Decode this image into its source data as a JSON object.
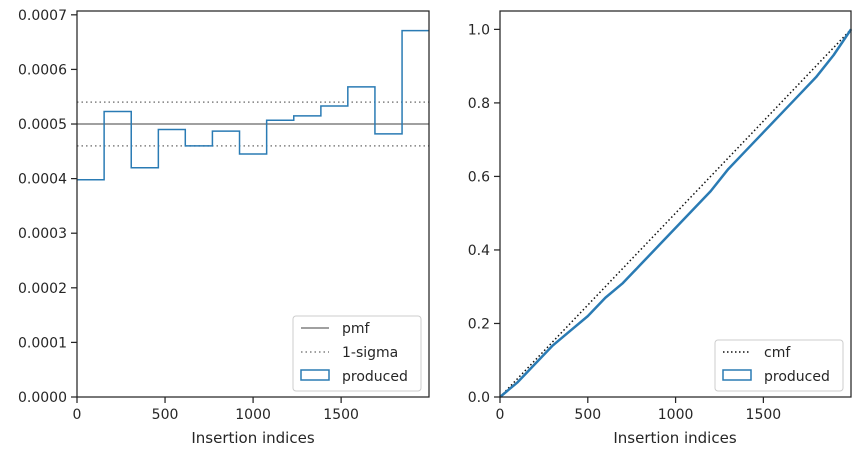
{
  "chart_data": [
    {
      "type": "step",
      "xlabel": "Insertion indices",
      "xlim": [
        0,
        1999
      ],
      "ylim": [
        0,
        0.000707
      ],
      "xticks": [
        0,
        500,
        1000,
        1500
      ],
      "xtick_labels": [
        "0",
        "500",
        "1000",
        "1500"
      ],
      "yticks": [
        0,
        0.0001,
        0.0002,
        0.0003,
        0.0004,
        0.0005,
        0.0006,
        0.0007
      ],
      "ytick_labels": [
        "0.0000",
        "0.0001",
        "0.0002",
        "0.0003",
        "0.0004",
        "0.0005",
        "0.0006",
        "0.0007"
      ],
      "pmf": 0.0005,
      "sigma_band": [
        0.00046,
        0.00054
      ],
      "bin_edges": [
        0,
        154,
        308,
        462,
        615,
        769,
        923,
        1077,
        1231,
        1385,
        1538,
        1692,
        1846,
        1999
      ],
      "values": [
        0.000398,
        0.000523,
        0.00042,
        0.00049,
        0.00046,
        0.000487,
        0.000445,
        0.000507,
        0.000515,
        0.000533,
        0.000568,
        0.000482,
        0.000671
      ],
      "colors": {
        "pmf": "#808080",
        "sigma": "#808080",
        "produced": "#2a7bb4"
      },
      "legend": {
        "position": "lower right",
        "entries": [
          {
            "label": "pmf",
            "style": "solid-line"
          },
          {
            "label": "1-sigma",
            "style": "dotted-line"
          },
          {
            "label": "produced",
            "style": "patch"
          }
        ]
      }
    },
    {
      "type": "line",
      "xlabel": "Insertion indices",
      "xlim": [
        0,
        1999
      ],
      "ylim": [
        0,
        1.05
      ],
      "xticks": [
        0,
        500,
        1000,
        1500
      ],
      "xtick_labels": [
        "0",
        "500",
        "1000",
        "1500"
      ],
      "yticks": [
        0,
        0.2,
        0.4,
        0.6,
        0.8,
        1.0
      ],
      "ytick_labels": [
        "0.0",
        "0.2",
        "0.4",
        "0.6",
        "0.8",
        "1.0"
      ],
      "cmf": {
        "x": [
          0,
          1999
        ],
        "y": [
          0,
          1.0
        ]
      },
      "produced": {
        "x": [
          0,
          100,
          200,
          300,
          400,
          500,
          600,
          700,
          800,
          900,
          1000,
          1100,
          1200,
          1300,
          1400,
          1500,
          1600,
          1700,
          1800,
          1900,
          1999
        ],
        "y": [
          0.0,
          0.04,
          0.09,
          0.14,
          0.18,
          0.22,
          0.27,
          0.31,
          0.36,
          0.41,
          0.46,
          0.51,
          0.56,
          0.62,
          0.67,
          0.72,
          0.77,
          0.82,
          0.87,
          0.93,
          1.0
        ]
      },
      "colors": {
        "cmf": "#111111",
        "produced": "#2a7bb4"
      },
      "legend": {
        "position": "lower right",
        "entries": [
          {
            "label": "cmf",
            "style": "dotted-line"
          },
          {
            "label": "produced",
            "style": "patch"
          }
        ]
      }
    }
  ]
}
